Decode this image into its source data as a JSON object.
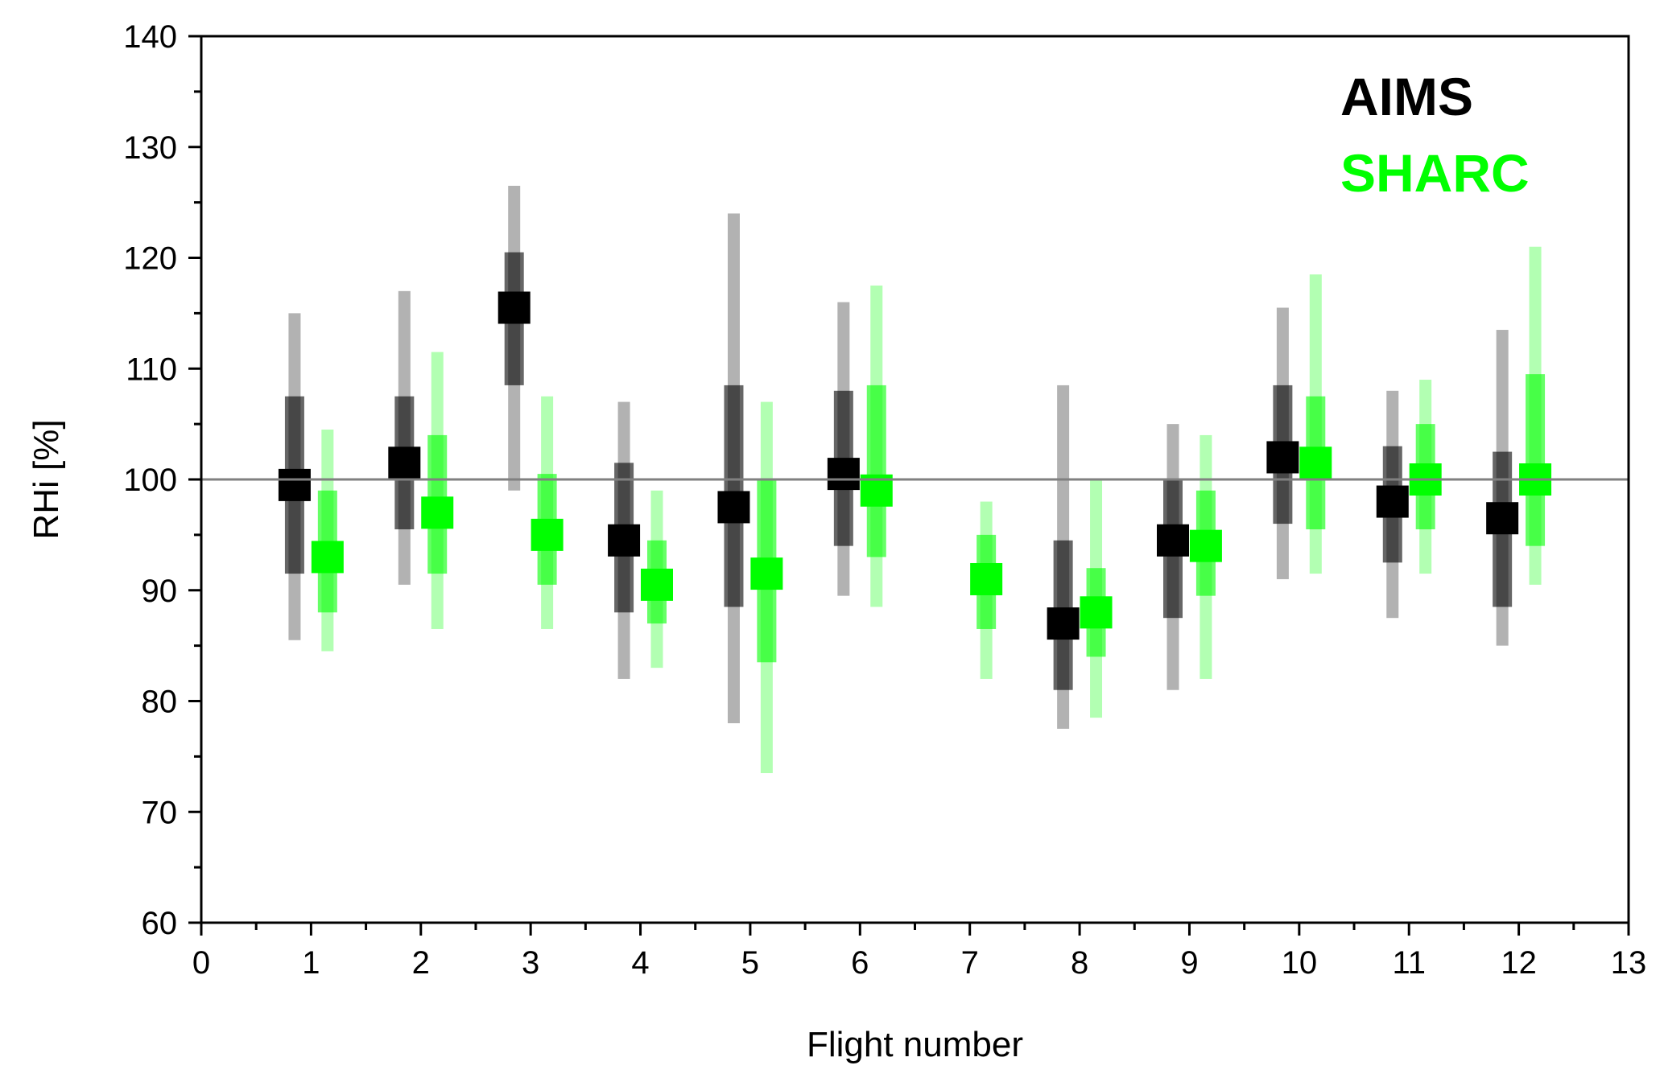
{
  "chart_data": {
    "type": "scatter",
    "title": "",
    "xlabel": "Flight number",
    "ylabel": "RHi [%]",
    "xlim": [
      0,
      13
    ],
    "ylim": [
      60,
      140
    ],
    "xticks": [
      0,
      1,
      2,
      3,
      4,
      5,
      6,
      7,
      8,
      9,
      10,
      11,
      12,
      13
    ],
    "yticks": [
      60,
      70,
      80,
      90,
      100,
      110,
      120,
      130,
      140
    ],
    "reference_line": {
      "y": 100,
      "color": "#808080"
    },
    "grid": false,
    "legend_position": "top-right",
    "series": [
      {
        "name": "AIMS",
        "color": "#000000",
        "x_offset": -0.15,
        "points": [
          {
            "flight": 1,
            "median": 99.5,
            "q25": 91.5,
            "q75": 107.5,
            "p5": 85.5,
            "p95": 115.0
          },
          {
            "flight": 2,
            "median": 101.5,
            "q25": 95.5,
            "q75": 107.5,
            "p5": 90.5,
            "p95": 117.0
          },
          {
            "flight": 3,
            "median": 115.5,
            "q25": 108.5,
            "q75": 120.5,
            "p5": 99.0,
            "p95": 126.5
          },
          {
            "flight": 4,
            "median": 94.5,
            "q25": 88.0,
            "q75": 101.5,
            "p5": 82.0,
            "p95": 107.0
          },
          {
            "flight": 5,
            "median": 97.5,
            "q25": 88.5,
            "q75": 108.5,
            "p5": 78.0,
            "p95": 124.0
          },
          {
            "flight": 6,
            "median": 100.5,
            "q25": 94.0,
            "q75": 108.0,
            "p5": 89.5,
            "p95": 116.0
          },
          {
            "flight": 8,
            "median": 87.0,
            "q25": 81.0,
            "q75": 94.5,
            "p5": 77.5,
            "p95": 108.5
          },
          {
            "flight": 9,
            "median": 94.5,
            "q25": 87.5,
            "q75": 100.0,
            "p5": 81.0,
            "p95": 105.0
          },
          {
            "flight": 10,
            "median": 102.0,
            "q25": 96.0,
            "q75": 108.5,
            "p5": 91.0,
            "p95": 115.5
          },
          {
            "flight": 11,
            "median": 98.0,
            "q25": 92.5,
            "q75": 103.0,
            "p5": 87.5,
            "p95": 108.0
          },
          {
            "flight": 12,
            "median": 96.5,
            "q25": 88.5,
            "q75": 102.5,
            "p5": 85.0,
            "p95": 113.5
          }
        ]
      },
      {
        "name": "SHARC",
        "color": "#00ff00",
        "x_offset": 0.15,
        "points": [
          {
            "flight": 1,
            "median": 93.0,
            "q25": 88.0,
            "q75": 99.0,
            "p5": 84.5,
            "p95": 104.5
          },
          {
            "flight": 2,
            "median": 97.0,
            "q25": 91.5,
            "q75": 104.0,
            "p5": 86.5,
            "p95": 111.5
          },
          {
            "flight": 3,
            "median": 95.0,
            "q25": 90.5,
            "q75": 100.5,
            "p5": 86.5,
            "p95": 107.5
          },
          {
            "flight": 4,
            "median": 90.5,
            "q25": 87.0,
            "q75": 94.5,
            "p5": 83.0,
            "p95": 99.0
          },
          {
            "flight": 5,
            "median": 91.5,
            "q25": 83.5,
            "q75": 100.0,
            "p5": 73.5,
            "p95": 107.0
          },
          {
            "flight": 6,
            "median": 99.0,
            "q25": 93.0,
            "q75": 108.5,
            "p5": 88.5,
            "p95": 117.5
          },
          {
            "flight": 7,
            "median": 91.0,
            "q25": 86.5,
            "q75": 95.0,
            "p5": 82.0,
            "p95": 98.0
          },
          {
            "flight": 8,
            "median": 88.0,
            "q25": 84.0,
            "q75": 92.0,
            "p5": 78.5,
            "p95": 100.0
          },
          {
            "flight": 9,
            "median": 94.0,
            "q25": 89.5,
            "q75": 99.0,
            "p5": 82.0,
            "p95": 104.0
          },
          {
            "flight": 10,
            "median": 101.5,
            "q25": 95.5,
            "q75": 107.5,
            "p5": 91.5,
            "p95": 118.5
          },
          {
            "flight": 11,
            "median": 100.0,
            "q25": 95.5,
            "q75": 105.0,
            "p5": 91.5,
            "p95": 109.0
          },
          {
            "flight": 12,
            "median": 100.0,
            "q25": 94.0,
            "q75": 109.5,
            "p5": 90.5,
            "p95": 121.0
          }
        ]
      }
    ]
  }
}
